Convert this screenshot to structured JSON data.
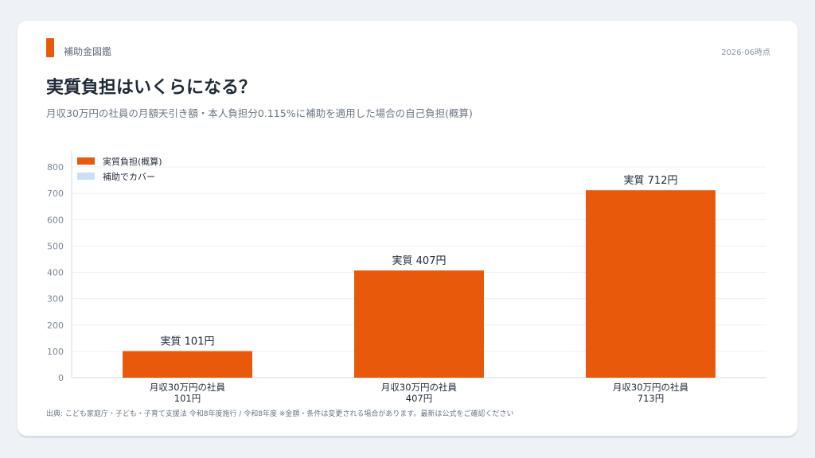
{
  "header": {
    "brand": "補助金図鑑",
    "as_of": "2026-06時点",
    "title": "実質負担はいくらになる？",
    "subtitle": "月収30万円の社員の月額天引き額・本人負担分0.115%に補助を適用した場合の自己負担(概算)"
  },
  "footer": {
    "source": "出典: こども家庭庁・子ども・子育て支援法 令和8年度施行 / 令和8年度 ※金額・条件は変更される場合があります。最新は公式をご確認ください"
  },
  "colors": {
    "accent": "#e8590c",
    "covered": "#c9dff7",
    "grid": "#eceff3",
    "axis_text": "#7a8594",
    "text": "#1f2937"
  },
  "chart_data": {
    "type": "bar",
    "stacked": true,
    "categories": [
      [
        "月収30万円の社員",
        "101円"
      ],
      [
        "月収30万円の社員",
        "407円"
      ],
      [
        "月収30万円の社員",
        "713円"
      ]
    ],
    "series": [
      {
        "name": "実質負担(概算)",
        "values": [
          101,
          407,
          712
        ],
        "color": "#e8590c"
      },
      {
        "name": "補助でカバー",
        "values": [
          0,
          0,
          1
        ],
        "color": "#c9dff7"
      }
    ],
    "data_labels": [
      "実質 101円",
      "実質 407円",
      "実質 712円"
    ],
    "yticks": [
      0,
      100,
      200,
      300,
      400,
      500,
      600,
      700,
      800
    ],
    "ylim": [
      0,
      800
    ],
    "grid": true,
    "legend_position": "top-left"
  }
}
